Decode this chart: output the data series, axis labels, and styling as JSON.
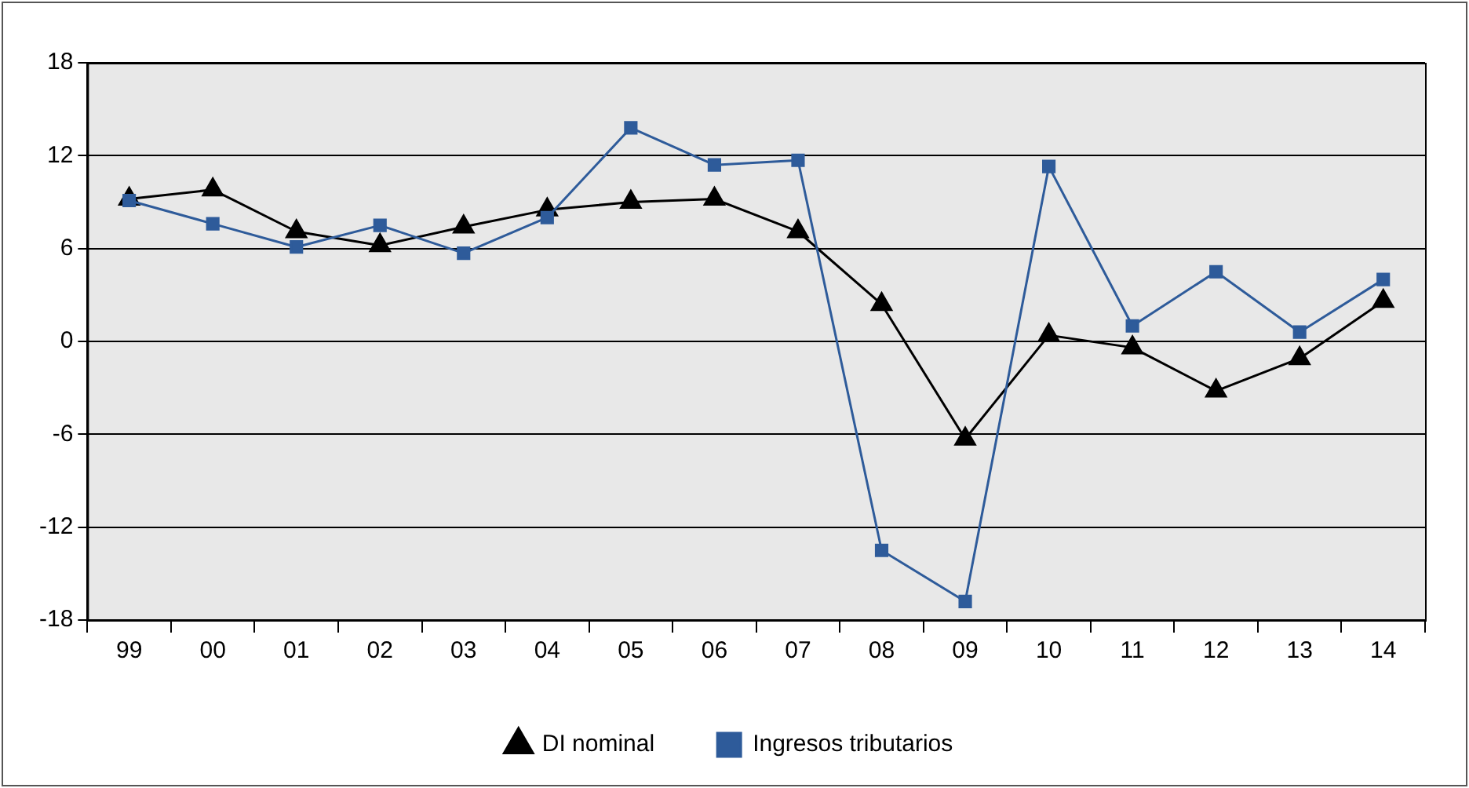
{
  "chart_data": {
    "type": "line",
    "categories": [
      "99",
      "00",
      "01",
      "02",
      "03",
      "04",
      "05",
      "06",
      "07",
      "08",
      "09",
      "10",
      "11",
      "12",
      "13",
      "14"
    ],
    "series": [
      {
        "name": "DI nominal",
        "color": "#000000",
        "marker": "triangle",
        "values": [
          9.2,
          9.8,
          7.1,
          6.2,
          7.4,
          8.5,
          9.0,
          9.2,
          7.1,
          2.4,
          -6.3,
          0.4,
          -0.4,
          -3.2,
          -1.1,
          2.6
        ]
      },
      {
        "name": "Ingresos tributarios",
        "color": "#2e5b9a",
        "marker": "square",
        "values": [
          9.1,
          7.6,
          6.1,
          7.5,
          5.7,
          8.0,
          13.8,
          11.4,
          11.7,
          -13.5,
          -16.8,
          11.3,
          1.0,
          4.5,
          0.6,
          4.0
        ]
      }
    ],
    "ylim": [
      -18,
      18
    ],
    "yticks": [
      -18,
      -12,
      -6,
      0,
      6,
      12,
      18
    ],
    "grid": "y",
    "legend": "bottom"
  }
}
